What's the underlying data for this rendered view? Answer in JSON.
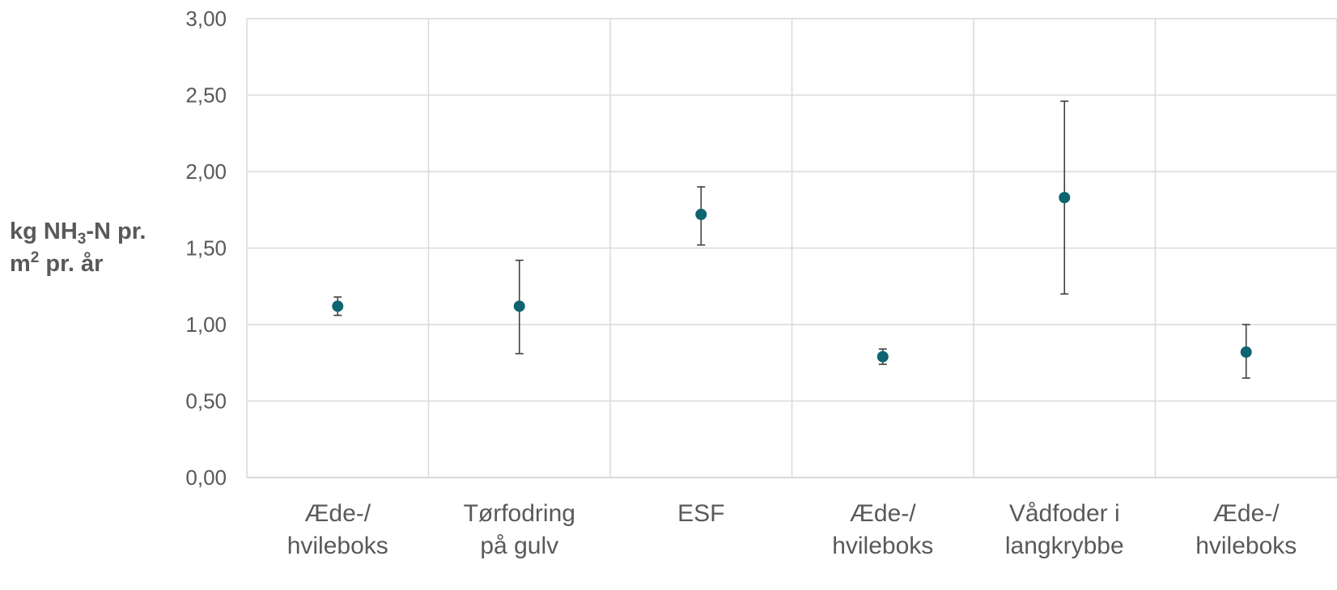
{
  "chart_data": {
    "type": "scatter",
    "categories": [
      [
        "Æde-/",
        "hvileboks"
      ],
      [
        "Tørfodring",
        "på gulv"
      ],
      [
        "ESF"
      ],
      [
        "Æde-/",
        "hvileboks"
      ],
      [
        "Vådfoder i",
        "langkrybbe"
      ],
      [
        "Æde-/",
        "hvileboks"
      ]
    ],
    "values": [
      1.12,
      1.12,
      1.72,
      0.79,
      1.83,
      0.82
    ],
    "error_high": [
      1.18,
      1.42,
      1.9,
      0.84,
      2.46,
      1.0
    ],
    "error_low": [
      1.06,
      0.81,
      1.52,
      0.74,
      1.2,
      0.65
    ],
    "ylabel": {
      "part1": "kg NH",
      "sub": "3",
      "part2": "-N pr.",
      "part3": "m",
      "sup": "2",
      "part4": " pr. år"
    },
    "ylim": [
      0,
      3
    ],
    "yticks": [
      "0,00",
      "0,50",
      "1,00",
      "1,50",
      "2,00",
      "2,50",
      "3,00"
    ],
    "grid": true,
    "colors": {
      "marker": "#0e6471",
      "error_bar": "#404040",
      "grid": "#d9d9d9",
      "text": "#595959"
    }
  }
}
